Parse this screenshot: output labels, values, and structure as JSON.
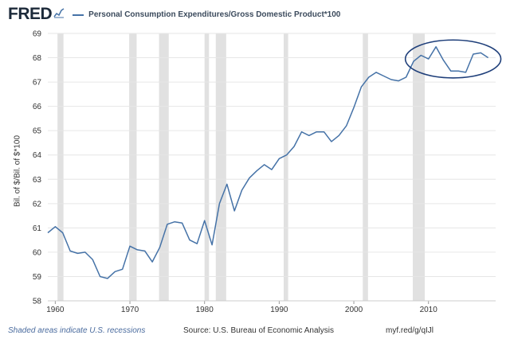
{
  "header": {
    "logo": "FRED",
    "series_title": "Personal Consumption Expenditures/Gross Domestic Product*100"
  },
  "footer": {
    "note": "Shaded areas indicate U.S. recessions",
    "source": "Source: U.S. Bureau of Economic Analysis",
    "link": "myf.red/g/qIJl"
  },
  "colors": {
    "line": "#4572a7",
    "recession": "#e1e1e1",
    "grid": "#e6e6e6",
    "annotation": "#1f3f7a"
  },
  "chart_data": {
    "type": "line",
    "title": "",
    "xlabel": "",
    "ylabel": "Bil. of $/Bil. of $*100",
    "xlim": [
      1959,
      2019
    ],
    "ylim": [
      58,
      69
    ],
    "y_ticks": [
      58,
      59,
      60,
      61,
      62,
      63,
      64,
      65,
      66,
      67,
      68,
      69
    ],
    "x_ticks": [
      1960,
      1970,
      1980,
      1990,
      2000,
      2010
    ],
    "grid": true,
    "legend_position": "top",
    "series": [
      {
        "name": "Personal Consumption Expenditures/Gross Domestic Product*100",
        "x": [
          1959,
          1960,
          1961,
          1962,
          1963,
          1964,
          1965,
          1966,
          1967,
          1968,
          1969,
          1970,
          1971,
          1972,
          1973,
          1974,
          1975,
          1976,
          1977,
          1978,
          1979,
          1980,
          1981,
          1982,
          1983,
          1984,
          1985,
          1986,
          1987,
          1988,
          1989,
          1990,
          1991,
          1992,
          1993,
          1994,
          1995,
          1996,
          1997,
          1998,
          1999,
          2000,
          2001,
          2002,
          2003,
          2004,
          2005,
          2006,
          2007,
          2008,
          2009,
          2010,
          2011,
          2012,
          2013,
          2014,
          2015,
          2016,
          2017,
          2018
        ],
        "y": [
          60.8,
          61.05,
          60.8,
          60.05,
          59.95,
          60.0,
          59.7,
          59.0,
          58.92,
          59.2,
          59.3,
          60.25,
          60.1,
          60.05,
          59.6,
          60.2,
          61.15,
          61.25,
          61.2,
          60.5,
          60.35,
          61.3,
          60.3,
          62.0,
          62.8,
          61.7,
          62.55,
          63.05,
          63.35,
          63.6,
          63.4,
          63.85,
          64.0,
          64.35,
          64.95,
          64.8,
          64.95,
          64.95,
          64.55,
          64.8,
          65.2,
          65.95,
          66.8,
          67.2,
          67.4,
          67.25,
          67.1,
          67.05,
          67.2,
          67.85,
          68.1,
          67.95,
          68.45,
          67.9,
          67.45,
          67.45,
          67.4,
          68.15,
          68.2,
          68.0
        ]
      }
    ],
    "recessions": [
      [
        1960.3,
        1961.1
      ],
      [
        1969.9,
        1970.9
      ],
      [
        1973.9,
        1975.2
      ],
      [
        1980.0,
        1980.6
      ],
      [
        1981.5,
        1982.9
      ],
      [
        1990.6,
        1991.2
      ],
      [
        2001.2,
        2001.9
      ],
      [
        2007.9,
        2009.5
      ]
    ],
    "annotation": {
      "type": "ellipse",
      "x_center": 2013.3,
      "y_center": 67.95,
      "x_radius": 6.4,
      "y_radius": 0.78
    }
  }
}
